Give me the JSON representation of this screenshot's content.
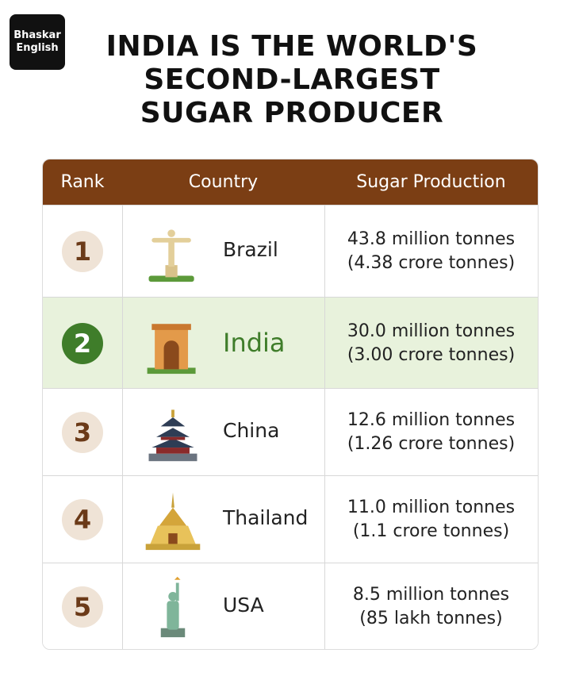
{
  "logo": {
    "line1": "Bhaskar",
    "line2": "English"
  },
  "title": [
    "INDIA IS THE WORLD'S",
    "SECOND-LARGEST",
    "SUGAR PRODUCER"
  ],
  "table": {
    "headers": [
      "Rank",
      "Country",
      "Sugar Production"
    ],
    "rows": [
      [
        "1",
        "Brazil",
        "43.8 million tonnes",
        "(4.38 crore tonnes)"
      ],
      [
        "2",
        "India",
        "30.0 million tonnes",
        "(3.00 crore tonnes)"
      ],
      [
        "3",
        "China",
        "12.6 million tonnes",
        "(1.26 crore tonnes)"
      ],
      [
        "4",
        "Thailand",
        "11.0 million tonnes",
        "(1.1 crore tonnes)"
      ],
      [
        "5",
        "USA",
        "8.5 million tonnes",
        "(85 lakh tonnes)"
      ]
    ]
  }
}
